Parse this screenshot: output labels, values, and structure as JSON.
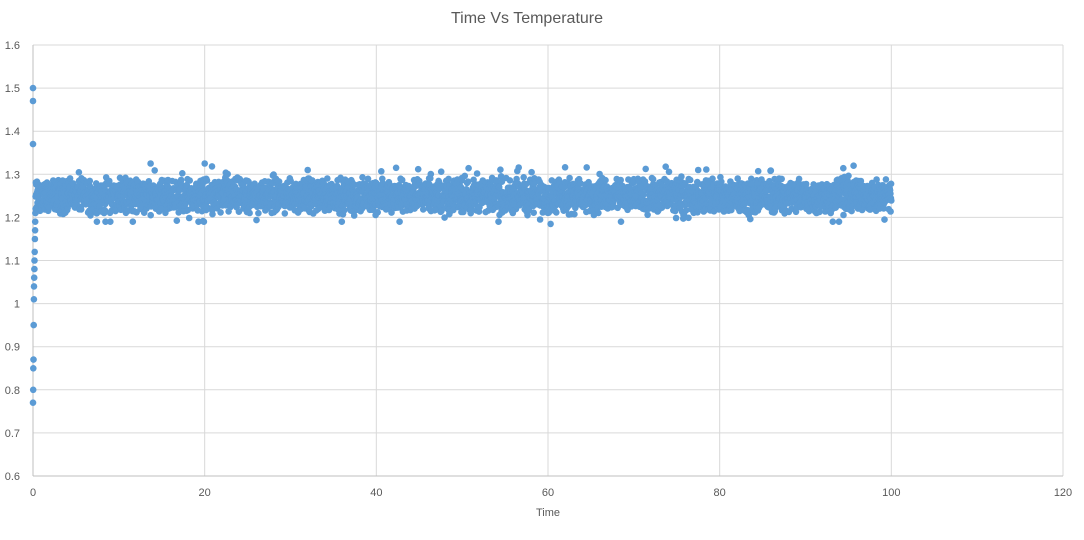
{
  "chart_data": {
    "type": "scatter",
    "title": "Time Vs Temperature",
    "xlabel": "Time",
    "ylabel": "",
    "xlim": [
      0,
      120
    ],
    "ylim": [
      0.6,
      1.6
    ],
    "x_ticks": [
      "0",
      "20",
      "40",
      "60",
      "80",
      "100",
      "120"
    ],
    "y_ticks": [
      "0.6",
      "0.7",
      "0.8",
      "0.9",
      "1",
      "1.1",
      "1.2",
      "1.3",
      "1.4",
      "1.5",
      "1.6"
    ],
    "grid": true,
    "legend": "none",
    "series": [
      {
        "color": "#5B9BD5",
        "transient_points": [
          [
            0.0,
            0.77
          ],
          [
            0.02,
            0.8
          ],
          [
            0.04,
            0.85
          ],
          [
            0.06,
            0.87
          ],
          [
            0.08,
            0.95
          ],
          [
            0.1,
            1.01
          ],
          [
            0.12,
            1.04
          ],
          [
            0.14,
            1.06
          ],
          [
            0.16,
            1.08
          ],
          [
            0.18,
            1.1
          ],
          [
            0.2,
            1.12
          ],
          [
            0.22,
            1.15
          ],
          [
            0.24,
            1.17
          ],
          [
            0.26,
            1.19
          ],
          [
            0.28,
            1.21
          ],
          [
            0.3,
            1.22
          ],
          [
            0.0,
            1.37
          ],
          [
            0.0,
            1.47
          ],
          [
            0.0,
            1.5
          ]
        ],
        "steady_state": {
          "x_start": 0.3,
          "x_end": 100,
          "mean": 1.25,
          "band_low": 1.21,
          "band_high": 1.29,
          "min": 1.19,
          "max": 1.32
        },
        "notable_points": [
          [
            13.7,
            1.325
          ],
          [
            20.0,
            1.325
          ],
          [
            32.0,
            1.31
          ],
          [
            42.3,
            1.315
          ],
          [
            77.5,
            1.31
          ],
          [
            95.6,
            1.32
          ],
          [
            9.0,
            1.19
          ],
          [
            60.3,
            1.185
          ],
          [
            93.9,
            1.19
          ],
          [
            99.2,
            1.195
          ]
        ]
      }
    ]
  }
}
